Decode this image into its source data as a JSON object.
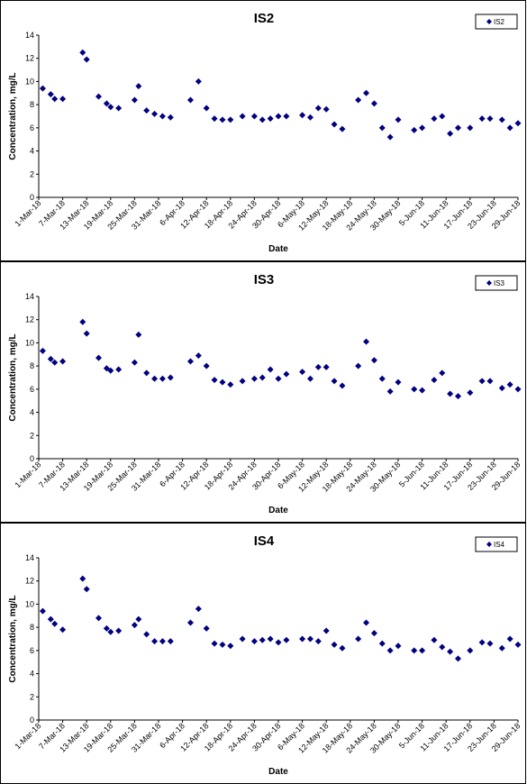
{
  "chart_data": [
    {
      "type": "scatter",
      "title": "IS2",
      "xlabel": "Date",
      "ylabel": "Concentration, mg/L",
      "ylim": [
        0,
        14
      ],
      "yticks": [
        0,
        2,
        4,
        6,
        8,
        10,
        12,
        14
      ],
      "xtick_labels": [
        "1-Mar-18",
        "7-Mar-18",
        "13-Mar-18",
        "19-Mar-18",
        "25-Mar-18",
        "31-Mar-18",
        "6-Apr-18",
        "12-Apr-18",
        "18-Apr-18",
        "24-Apr-18",
        "30-Apr-18",
        "6-May-18",
        "12-May-18",
        "18-May-18",
        "24-May-18",
        "30-May-18",
        "5-Jun-18",
        "11-Jun-18",
        "17-Jun-18",
        "23-Jun-18",
        "29-Jun-18"
      ],
      "legend": {
        "position": "top-right",
        "entries": [
          "IS2"
        ]
      },
      "marker_color": "#000080",
      "grid": false,
      "series": [
        {
          "name": "IS2",
          "points": [
            {
              "x": "2-Mar-18",
              "y": 9.4
            },
            {
              "x": "4-Mar-18",
              "y": 8.9
            },
            {
              "x": "5-Mar-18",
              "y": 8.5
            },
            {
              "x": "7-Mar-18",
              "y": 8.5
            },
            {
              "x": "12-Mar-18",
              "y": 12.5
            },
            {
              "x": "13-Mar-18",
              "y": 11.9
            },
            {
              "x": "16-Mar-18",
              "y": 8.7
            },
            {
              "x": "18-Mar-18",
              "y": 8.1
            },
            {
              "x": "19-Mar-18",
              "y": 7.8
            },
            {
              "x": "21-Mar-18",
              "y": 7.7
            },
            {
              "x": "25-Mar-18",
              "y": 8.4
            },
            {
              "x": "26-Mar-18",
              "y": 9.6
            },
            {
              "x": "28-Mar-18",
              "y": 7.5
            },
            {
              "x": "30-Mar-18",
              "y": 7.2
            },
            {
              "x": "1-Apr-18",
              "y": 7.0
            },
            {
              "x": "3-Apr-18",
              "y": 6.9
            },
            {
              "x": "8-Apr-18",
              "y": 8.4
            },
            {
              "x": "10-Apr-18",
              "y": 10.0
            },
            {
              "x": "12-Apr-18",
              "y": 7.7
            },
            {
              "x": "14-Apr-18",
              "y": 6.8
            },
            {
              "x": "16-Apr-18",
              "y": 6.7
            },
            {
              "x": "18-Apr-18",
              "y": 6.7
            },
            {
              "x": "21-Apr-18",
              "y": 7.0
            },
            {
              "x": "24-Apr-18",
              "y": 7.0
            },
            {
              "x": "26-Apr-18",
              "y": 6.7
            },
            {
              "x": "28-Apr-18",
              "y": 6.8
            },
            {
              "x": "30-Apr-18",
              "y": 7.0
            },
            {
              "x": "2-May-18",
              "y": 7.0
            },
            {
              "x": "6-May-18",
              "y": 7.1
            },
            {
              "x": "8-May-18",
              "y": 6.9
            },
            {
              "x": "10-May-18",
              "y": 7.7
            },
            {
              "x": "12-May-18",
              "y": 7.6
            },
            {
              "x": "14-May-18",
              "y": 6.3
            },
            {
              "x": "16-May-18",
              "y": 5.9
            },
            {
              "x": "20-May-18",
              "y": 8.4
            },
            {
              "x": "22-May-18",
              "y": 9.0
            },
            {
              "x": "24-May-18",
              "y": 8.1
            },
            {
              "x": "26-May-18",
              "y": 6.0
            },
            {
              "x": "28-May-18",
              "y": 5.2
            },
            {
              "x": "30-May-18",
              "y": 6.7
            },
            {
              "x": "3-Jun-18",
              "y": 5.8
            },
            {
              "x": "5-Jun-18",
              "y": 6.0
            },
            {
              "x": "8-Jun-18",
              "y": 6.8
            },
            {
              "x": "10-Jun-18",
              "y": 7.0
            },
            {
              "x": "12-Jun-18",
              "y": 5.5
            },
            {
              "x": "14-Jun-18",
              "y": 6.0
            },
            {
              "x": "17-Jun-18",
              "y": 6.0
            },
            {
              "x": "20-Jun-18",
              "y": 6.8
            },
            {
              "x": "22-Jun-18",
              "y": 6.8
            },
            {
              "x": "25-Jun-18",
              "y": 6.7
            },
            {
              "x": "27-Jun-18",
              "y": 6.0
            },
            {
              "x": "29-Jun-18",
              "y": 6.4
            }
          ]
        }
      ]
    },
    {
      "type": "scatter",
      "title": "IS3",
      "xlabel": "Date",
      "ylabel": "Concentration, mg/L",
      "ylim": [
        0,
        14
      ],
      "yticks": [
        0,
        2,
        4,
        6,
        8,
        10,
        12,
        14
      ],
      "xtick_labels": [
        "1-Mar-18",
        "7-Mar-18",
        "13-Mar-18",
        "19-Mar-18",
        "25-Mar-18",
        "31-Mar-18",
        "6-Apr-18",
        "12-Apr-18",
        "18-Apr-18",
        "24-Apr-18",
        "30-Apr-18",
        "6-May-18",
        "12-May-18",
        "18-May-18",
        "24-May-18",
        "30-May-18",
        "5-Jun-18",
        "11-Jun-18",
        "17-Jun-18",
        "23-Jun-18",
        "29-Jun-18"
      ],
      "legend": {
        "position": "top-right",
        "entries": [
          "IS3"
        ]
      },
      "marker_color": "#000080",
      "grid": false,
      "series": [
        {
          "name": "IS3",
          "points": [
            {
              "x": "2-Mar-18",
              "y": 9.3
            },
            {
              "x": "4-Mar-18",
              "y": 8.6
            },
            {
              "x": "5-Mar-18",
              "y": 8.3
            },
            {
              "x": "7-Mar-18",
              "y": 8.4
            },
            {
              "x": "12-Mar-18",
              "y": 11.8
            },
            {
              "x": "13-Mar-18",
              "y": 10.8
            },
            {
              "x": "16-Mar-18",
              "y": 8.7
            },
            {
              "x": "18-Mar-18",
              "y": 7.8
            },
            {
              "x": "19-Mar-18",
              "y": 7.6
            },
            {
              "x": "21-Mar-18",
              "y": 7.7
            },
            {
              "x": "25-Mar-18",
              "y": 8.3
            },
            {
              "x": "26-Mar-18",
              "y": 10.7
            },
            {
              "x": "28-Mar-18",
              "y": 7.4
            },
            {
              "x": "30-Mar-18",
              "y": 6.9
            },
            {
              "x": "1-Apr-18",
              "y": 6.9
            },
            {
              "x": "3-Apr-18",
              "y": 7.0
            },
            {
              "x": "8-Apr-18",
              "y": 8.4
            },
            {
              "x": "10-Apr-18",
              "y": 8.9
            },
            {
              "x": "12-Apr-18",
              "y": 8.0
            },
            {
              "x": "14-Apr-18",
              "y": 6.8
            },
            {
              "x": "16-Apr-18",
              "y": 6.6
            },
            {
              "x": "18-Apr-18",
              "y": 6.4
            },
            {
              "x": "21-Apr-18",
              "y": 6.7
            },
            {
              "x": "24-Apr-18",
              "y": 6.9
            },
            {
              "x": "26-Apr-18",
              "y": 7.0
            },
            {
              "x": "28-Apr-18",
              "y": 7.7
            },
            {
              "x": "30-Apr-18",
              "y": 6.9
            },
            {
              "x": "2-May-18",
              "y": 7.3
            },
            {
              "x": "6-May-18",
              "y": 7.5
            },
            {
              "x": "8-May-18",
              "y": 6.9
            },
            {
              "x": "10-May-18",
              "y": 7.9
            },
            {
              "x": "12-May-18",
              "y": 7.9
            },
            {
              "x": "14-May-18",
              "y": 6.7
            },
            {
              "x": "16-May-18",
              "y": 6.3
            },
            {
              "x": "20-May-18",
              "y": 8.0
            },
            {
              "x": "22-May-18",
              "y": 10.1
            },
            {
              "x": "24-May-18",
              "y": 8.5
            },
            {
              "x": "26-May-18",
              "y": 6.9
            },
            {
              "x": "28-May-18",
              "y": 5.8
            },
            {
              "x": "30-May-18",
              "y": 6.6
            },
            {
              "x": "3-Jun-18",
              "y": 6.0
            },
            {
              "x": "5-Jun-18",
              "y": 5.9
            },
            {
              "x": "8-Jun-18",
              "y": 6.8
            },
            {
              "x": "10-Jun-18",
              "y": 7.4
            },
            {
              "x": "12-Jun-18",
              "y": 5.6
            },
            {
              "x": "14-Jun-18",
              "y": 5.4
            },
            {
              "x": "17-Jun-18",
              "y": 5.7
            },
            {
              "x": "20-Jun-18",
              "y": 6.7
            },
            {
              "x": "22-Jun-18",
              "y": 6.7
            },
            {
              "x": "25-Jun-18",
              "y": 6.1
            },
            {
              "x": "27-Jun-18",
              "y": 6.4
            },
            {
              "x": "29-Jun-18",
              "y": 6.0
            }
          ]
        }
      ]
    },
    {
      "type": "scatter",
      "title": "IS4",
      "xlabel": "Date",
      "ylabel": "Concentration, mg/L",
      "ylim": [
        0,
        14
      ],
      "yticks": [
        0,
        2,
        4,
        6,
        8,
        10,
        12,
        14
      ],
      "xtick_labels": [
        "1-Mar-18",
        "7-Mar-18",
        "13-Mar-18",
        "19-Mar-18",
        "25-Mar-18",
        "31-Mar-18",
        "6-Apr-18",
        "12-Apr-18",
        "18-Apr-18",
        "24-Apr-18",
        "30-Apr-18",
        "6-May-18",
        "12-May-18",
        "18-May-18",
        "24-May-18",
        "30-May-18",
        "5-Jun-18",
        "11-Jun-18",
        "17-Jun-18",
        "23-Jun-18",
        "29-Jun-18"
      ],
      "legend": {
        "position": "top-right",
        "entries": [
          "IS4"
        ]
      },
      "marker_color": "#000080",
      "grid": false,
      "series": [
        {
          "name": "IS4",
          "points": [
            {
              "x": "2-Mar-18",
              "y": 9.4
            },
            {
              "x": "4-Mar-18",
              "y": 8.7
            },
            {
              "x": "5-Mar-18",
              "y": 8.3
            },
            {
              "x": "7-Mar-18",
              "y": 7.8
            },
            {
              "x": "12-Mar-18",
              "y": 12.2
            },
            {
              "x": "13-Mar-18",
              "y": 11.3
            },
            {
              "x": "16-Mar-18",
              "y": 8.8
            },
            {
              "x": "18-Mar-18",
              "y": 7.9
            },
            {
              "x": "19-Mar-18",
              "y": 7.6
            },
            {
              "x": "21-Mar-18",
              "y": 7.7
            },
            {
              "x": "25-Mar-18",
              "y": 8.2
            },
            {
              "x": "26-Mar-18",
              "y": 8.7
            },
            {
              "x": "28-Mar-18",
              "y": 7.4
            },
            {
              "x": "30-Mar-18",
              "y": 6.8
            },
            {
              "x": "1-Apr-18",
              "y": 6.8
            },
            {
              "x": "3-Apr-18",
              "y": 6.8
            },
            {
              "x": "8-Apr-18",
              "y": 8.4
            },
            {
              "x": "10-Apr-18",
              "y": 9.6
            },
            {
              "x": "12-Apr-18",
              "y": 7.9
            },
            {
              "x": "14-Apr-18",
              "y": 6.6
            },
            {
              "x": "16-Apr-18",
              "y": 6.5
            },
            {
              "x": "18-Apr-18",
              "y": 6.4
            },
            {
              "x": "21-Apr-18",
              "y": 7.0
            },
            {
              "x": "24-Apr-18",
              "y": 6.8
            },
            {
              "x": "26-Apr-18",
              "y": 6.9
            },
            {
              "x": "28-Apr-18",
              "y": 7.0
            },
            {
              "x": "30-Apr-18",
              "y": 6.7
            },
            {
              "x": "2-May-18",
              "y": 6.9
            },
            {
              "x": "6-May-18",
              "y": 7.0
            },
            {
              "x": "8-May-18",
              "y": 7.0
            },
            {
              "x": "10-May-18",
              "y": 6.8
            },
            {
              "x": "12-May-18",
              "y": 7.7
            },
            {
              "x": "14-May-18",
              "y": 6.5
            },
            {
              "x": "16-May-18",
              "y": 6.2
            },
            {
              "x": "20-May-18",
              "y": 7.0
            },
            {
              "x": "22-May-18",
              "y": 8.4
            },
            {
              "x": "24-May-18",
              "y": 7.5
            },
            {
              "x": "26-May-18",
              "y": 6.6
            },
            {
              "x": "28-May-18",
              "y": 6.0
            },
            {
              "x": "30-May-18",
              "y": 6.4
            },
            {
              "x": "3-Jun-18",
              "y": 6.0
            },
            {
              "x": "5-Jun-18",
              "y": 6.0
            },
            {
              "x": "8-Jun-18",
              "y": 6.9
            },
            {
              "x": "10-Jun-18",
              "y": 6.3
            },
            {
              "x": "12-Jun-18",
              "y": 5.9
            },
            {
              "x": "14-Jun-18",
              "y": 5.3
            },
            {
              "x": "17-Jun-18",
              "y": 6.0
            },
            {
              "x": "20-Jun-18",
              "y": 6.7
            },
            {
              "x": "22-Jun-18",
              "y": 6.6
            },
            {
              "x": "25-Jun-18",
              "y": 6.2
            },
            {
              "x": "27-Jun-18",
              "y": 7.0
            },
            {
              "x": "29-Jun-18",
              "y": 6.5
            }
          ]
        }
      ]
    }
  ]
}
